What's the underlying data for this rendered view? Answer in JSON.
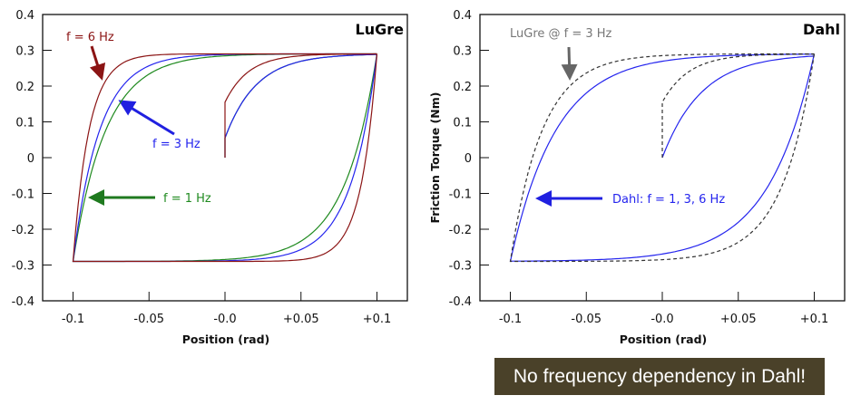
{
  "chart_data": [
    {
      "type": "line",
      "title": "LuGre",
      "xlabel": "Position (rad)",
      "ylabel": "",
      "xlim": [
        -0.12,
        0.12
      ],
      "ylim": [
        -0.4,
        0.4
      ],
      "xticks": [
        -0.1,
        -0.05,
        0,
        0.05,
        0.1
      ],
      "xtick_labels": [
        "-0.1",
        "-0.05",
        "-0.0",
        "+0.05",
        "+0.1"
      ],
      "yticks": [
        0.4,
        0.3,
        0.2,
        0.1,
        0,
        -0.1,
        -0.2,
        -0.3,
        -0.4
      ],
      "ytick_labels": [
        "0.4",
        "0.3",
        "0.2",
        "0.1",
        "0",
        "-0.1",
        "-0.2",
        "-0.3",
        "-0.4"
      ],
      "grid": false,
      "series": [
        {
          "name": "f = 6 Hz",
          "color": "#8b1414",
          "style": "solid",
          "amplitude": 0.1,
          "saturation_torque": 0.29,
          "loop_decay": 0.0105,
          "initial_jump": 0.155,
          "initial_decay": 0.0155
        },
        {
          "name": "f = 3 Hz",
          "color": "#2424ee",
          "style": "solid",
          "amplitude": 0.1,
          "saturation_torque": 0.29,
          "loop_decay": 0.0175,
          "initial_jump": 0.055,
          "initial_decay": 0.0206
        },
        {
          "name": "f = 1 Hz",
          "color": "#1f8a1f",
          "style": "solid",
          "amplitude": 0.1,
          "saturation_torque": 0.29,
          "loop_decay": 0.0215,
          "initial_jump": 0.055,
          "initial_decay": 0.0206
        }
      ],
      "annotations": [
        {
          "text": "f = 6 Hz",
          "color": "#8b1414"
        },
        {
          "text": "f = 3 Hz",
          "color": "#2424ee"
        },
        {
          "text": "f = 1 Hz",
          "color": "#1f8a1f"
        }
      ]
    },
    {
      "type": "line",
      "title": "Dahl",
      "xlabel": "Position (rad)",
      "ylabel": "Friction Torque (Nm)",
      "xlim": [
        -0.12,
        0.12
      ],
      "ylim": [
        -0.4,
        0.4
      ],
      "xticks": [
        -0.1,
        -0.05,
        0,
        0.05,
        0.1
      ],
      "xtick_labels": [
        "-0.1",
        "-0.05",
        "-0.0",
        "+0.05",
        "+0.1"
      ],
      "yticks": [
        0.4,
        0.3,
        0.2,
        0.1,
        0,
        -0.1,
        -0.2,
        -0.3,
        -0.4
      ],
      "ytick_labels": [
        "0.4",
        "0.3",
        "0.2",
        "0.1",
        "0",
        "-0.1",
        "-0.2",
        "-0.3",
        "-0.4"
      ],
      "grid": false,
      "series": [
        {
          "name": "LuGre @ f = 3 Hz",
          "color": "#333333",
          "style": "dashed",
          "amplitude": 0.1,
          "saturation_torque": 0.29,
          "loop_decay": 0.021,
          "initial_jump": 0.155,
          "initial_decay": 0.0175
        },
        {
          "name": "Dahl: f = 1, 3, 6 Hz",
          "color": "#2424ee",
          "style": "solid",
          "amplitude": 0.1,
          "saturation_torque": 0.29,
          "loop_decay": 0.03,
          "initial_jump": 0,
          "initial_decay": 0.026
        }
      ],
      "annotations": [
        {
          "text": "LuGre @ f = 3 Hz",
          "color": "#777777"
        },
        {
          "text": "Dahl: f = 1, 3, 6 Hz",
          "color": "#2424ee"
        }
      ]
    }
  ],
  "callout": {
    "text": "No frequency dependency in Dahl!",
    "background": "#4a4129"
  }
}
